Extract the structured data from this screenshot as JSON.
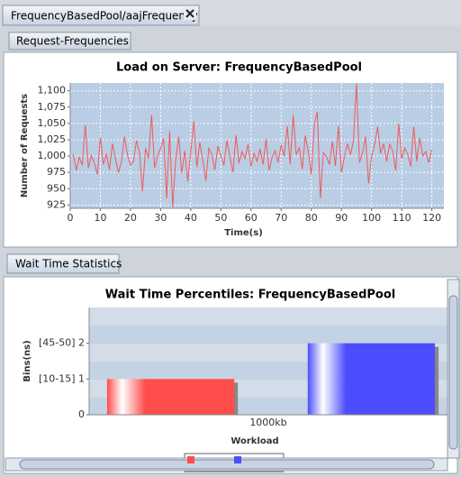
{
  "tabs": {
    "main": "FrequencyBasedPool/aajFrequency",
    "request": "Request-Frequencies",
    "wait": "Wait Time Statistics"
  },
  "chart_data": [
    {
      "type": "line",
      "title": "Load on Server: FrequencyBasedPool",
      "x_label": "Time(s)",
      "y_label": "Number of Requests",
      "color": "#f05a5a",
      "grid": true,
      "x": [
        1,
        2,
        3,
        4,
        5,
        6,
        7,
        8,
        9,
        10,
        11,
        12,
        13,
        14,
        15,
        16,
        17,
        18,
        19,
        20,
        21,
        22,
        23,
        24,
        25,
        26,
        27,
        28,
        29,
        30,
        31,
        32,
        33,
        34,
        35,
        36,
        37,
        38,
        39,
        40,
        41,
        42,
        43,
        44,
        45,
        46,
        47,
        48,
        49,
        50,
        51,
        52,
        53,
        54,
        55,
        56,
        57,
        58,
        59,
        60,
        61,
        62,
        63,
        64,
        65,
        66,
        67,
        68,
        69,
        70,
        71,
        72,
        73,
        74,
        75,
        76,
        77,
        78,
        79,
        80,
        81,
        82,
        83,
        84,
        85,
        86,
        87,
        88,
        89,
        90,
        91,
        92,
        93,
        94,
        95,
        96,
        97,
        98,
        99,
        100,
        101,
        102,
        103,
        104,
        105,
        106,
        107,
        108,
        109,
        110,
        111,
        112,
        113,
        114,
        115,
        116,
        117,
        118,
        119,
        120
      ],
      "values": [
        1003,
        978,
        998,
        986,
        1048,
        982,
        1001,
        989,
        972,
        1028,
        987,
        1003,
        979,
        1019,
        996,
        975,
        991,
        1030,
        1002,
        986,
        992,
        1024,
        1004,
        946,
        1012,
        996,
        1063,
        982,
        1001,
        1012,
        1027,
        935,
        1038,
        922,
        994,
        1030,
        974,
        1008,
        961,
        1007,
        1053,
        983,
        1021,
        993,
        962,
        1012,
        1002,
        979,
        1015,
        1001,
        986,
        1024,
        998,
        975,
        1032,
        989,
        1007,
        996,
        1018,
        984,
        1004,
        992,
        1011,
        987,
        1026,
        978,
        998,
        1008,
        990,
        1017,
        1000,
        1046,
        988,
        1063,
        1002,
        1013,
        980,
        1031,
        1007,
        972,
        1048,
        1068,
        935,
        1005,
        1000,
        987,
        1022,
        985,
        1046,
        975,
        999,
        1019,
        1002,
        1024,
        1111,
        990,
        1004,
        1030,
        958,
        1000,
        1017,
        1045,
        1004,
        1019,
        992,
        1018,
        1008,
        978,
        1050,
        996,
        1012,
        1003,
        984,
        1045,
        992,
        1028,
        1000,
        1007,
        990,
        1010
      ],
      "xlim": [
        0,
        124
      ],
      "xticks": [
        0,
        10,
        20,
        30,
        40,
        50,
        60,
        70,
        80,
        90,
        100,
        110,
        120
      ],
      "ylim": [
        920,
        1112
      ],
      "yticks": [
        925,
        950,
        975,
        {
          "value": 1000,
          "label": "1,000"
        },
        {
          "value": 1025,
          "label": "1,025"
        },
        {
          "value": 1050,
          "label": "1,050"
        },
        {
          "value": 1075,
          "label": "1,075"
        },
        {
          "value": 1100,
          "label": "1,100"
        }
      ]
    },
    {
      "type": "bar",
      "title": "Wait Time Percentiles: FrequencyBasedPool",
      "x_label": "Workload",
      "y_label": "Bins(ns)",
      "categories": [
        "1000kb"
      ],
      "series": [
        {
          "color": "#ff4d4d",
          "values": [
            1
          ]
        },
        {
          "color": "#4d4dff",
          "values": [
            2
          ]
        }
      ],
      "ylim": [
        0,
        3
      ],
      "yticks": [
        0,
        {
          "value": 1,
          "label": "[10-15] 1"
        },
        {
          "value": 2,
          "label": "[45-50] 2"
        }
      ]
    }
  ]
}
